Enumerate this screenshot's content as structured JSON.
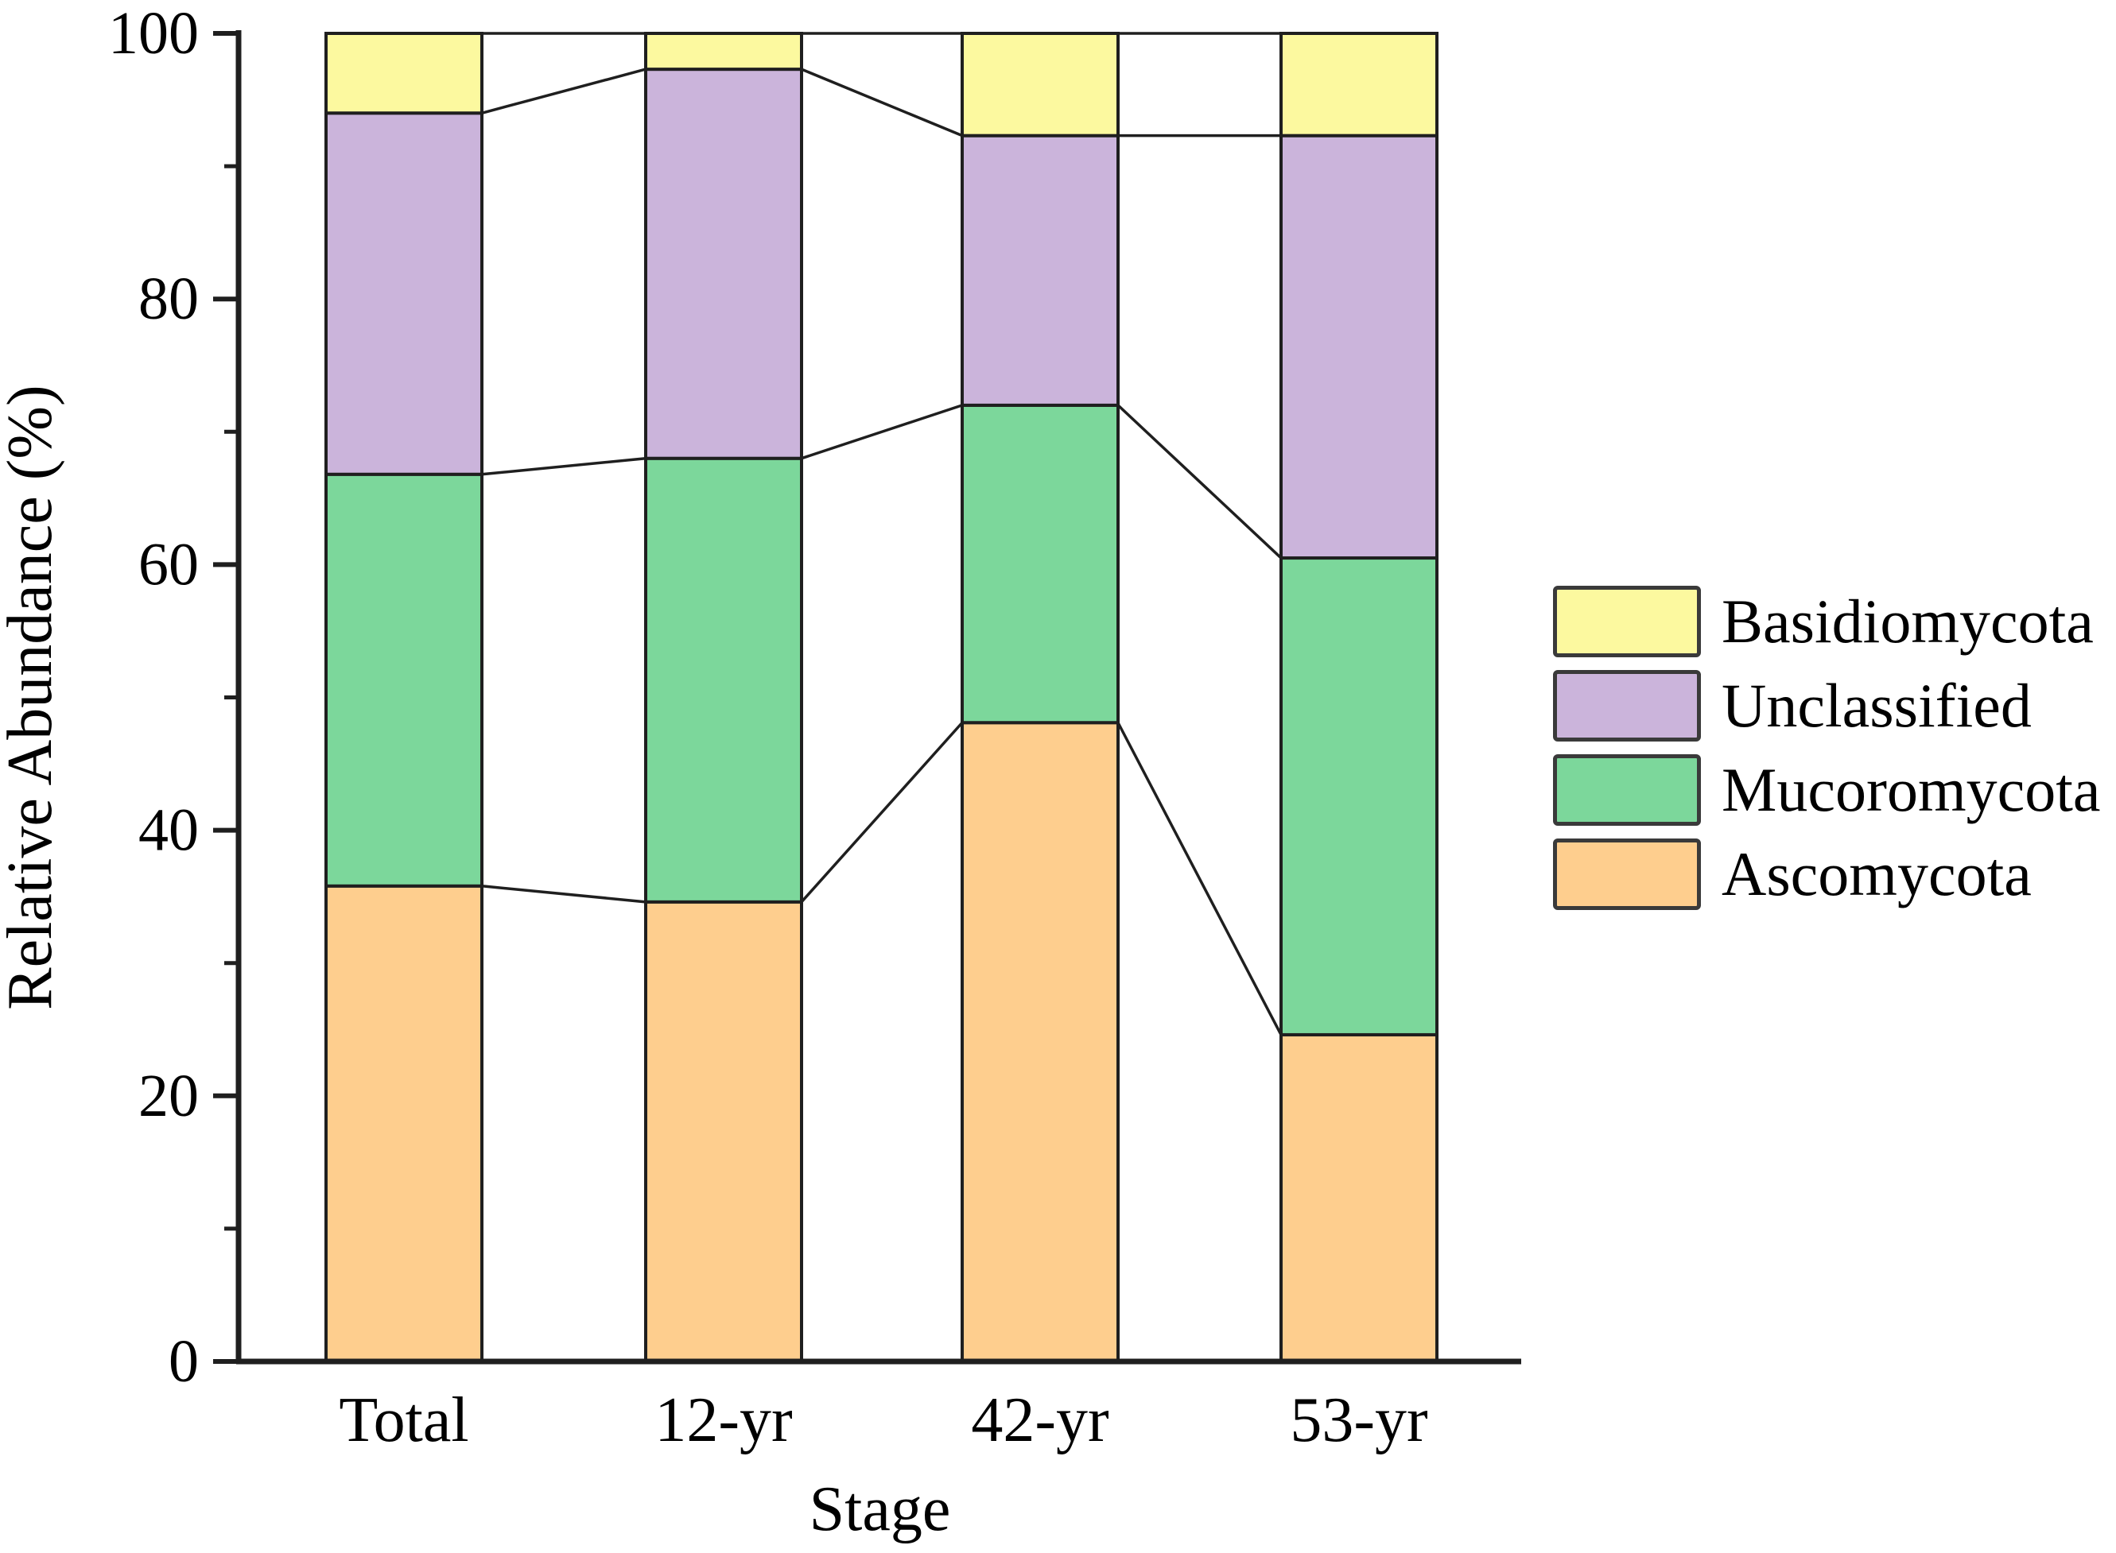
{
  "figure": {
    "background": "#ffffff",
    "text_color": "#000000"
  },
  "chart_data": {
    "type": "bar",
    "stacked": true,
    "title": "",
    "xlabel": "Stage",
    "ylabel": "Relative Abundance (%)",
    "ylim": [
      0,
      100
    ],
    "y_major_ticks": [
      0,
      20,
      40,
      60,
      80,
      100
    ],
    "y_minor_ticks": [
      10,
      30,
      50,
      70,
      90
    ],
    "grid": false,
    "categories": [
      "Total",
      "12-yr",
      "42-yr",
      "53-yr"
    ],
    "series": [
      {
        "name": "Ascomycota",
        "color": "#FECE8E",
        "values": [
          35.8,
          34.6,
          48.1,
          24.6
        ]
      },
      {
        "name": "Mucoromycota",
        "color": "#7CD79B",
        "values": [
          31.0,
          33.4,
          23.9,
          35.9
        ]
      },
      {
        "name": "Unclassified",
        "color": "#CBB4DB",
        "values": [
          27.2,
          29.3,
          20.3,
          31.8
        ]
      },
      {
        "name": "Basidiomycota",
        "color": "#FCF99F",
        "values": [
          6.0,
          2.7,
          7.7,
          7.7
        ]
      }
    ],
    "cumulative_boundaries": {
      "Total": [
        35.8,
        66.8,
        94.0,
        100.0
      ],
      "12-yr": [
        34.6,
        68.0,
        97.3,
        100.0
      ],
      "42-yr": [
        48.1,
        72.0,
        92.3,
        100.0
      ],
      "53-yr": [
        24.6,
        60.5,
        92.3,
        100.0
      ]
    },
    "connectors": true,
    "axis_color": "#1f1f1f",
    "legend": {
      "position": "right",
      "entries": [
        {
          "label": "Basidiomycota",
          "color": "#FCF99F"
        },
        {
          "label": "Unclassified",
          "color": "#CBB4DB"
        },
        {
          "label": "Mucoromycota",
          "color": "#7CD79B"
        },
        {
          "label": "Ascomycota",
          "color": "#FECE8E"
        }
      ]
    }
  }
}
